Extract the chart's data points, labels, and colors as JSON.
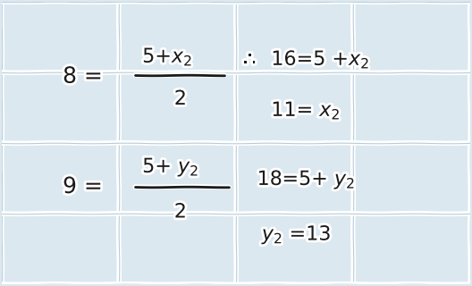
{
  "background_color": "#dce8f0",
  "grid_color": "#b8cdd8",
  "grid_cols": 4,
  "grid_rows": 4,
  "text_color": "#1a1a1a",
  "fig_width": 5.28,
  "fig_height": 3.2,
  "dpi": 100,
  "font_size": 16,
  "font_size_small": 13
}
